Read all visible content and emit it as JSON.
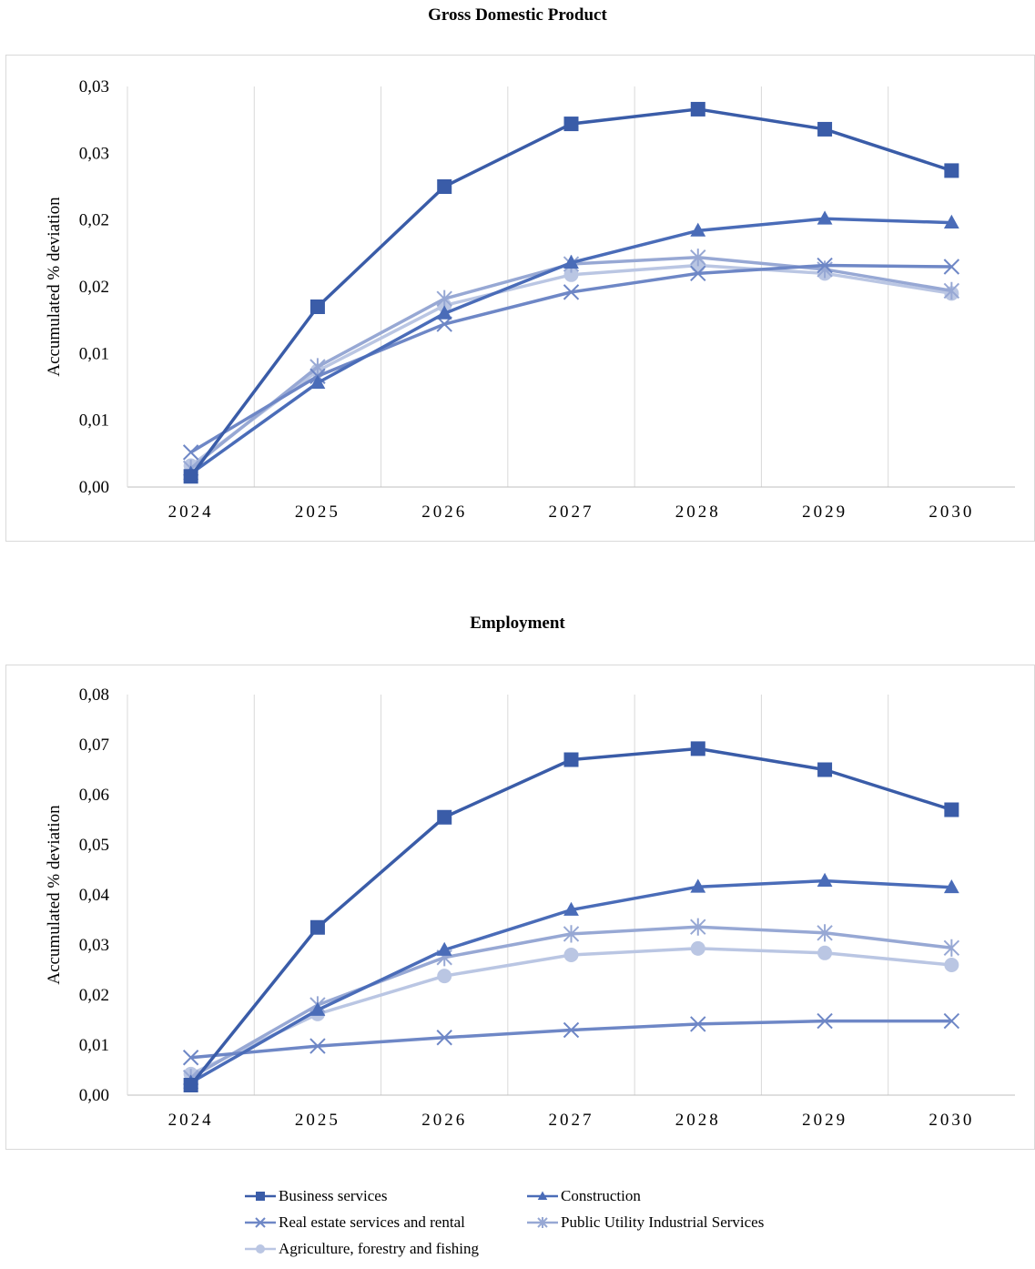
{
  "chart_data": [
    {
      "type": "line",
      "title": "Gross Domestic Product",
      "xlabel": "",
      "ylabel": "Accumulated % deviation",
      "categories": [
        "2024",
        "2025",
        "2026",
        "2027",
        "2028",
        "2029",
        "2030"
      ],
      "y_tick_labels": [
        "0,00",
        "0,01",
        "0,01",
        "0,02",
        "0,02",
        "0,03",
        "0,03"
      ],
      "ylim": [
        0,
        0.03
      ],
      "grid": "vertical",
      "series": [
        {
          "name": "Business services",
          "values": [
            0.0008,
            0.0135,
            0.0225,
            0.0272,
            0.0283,
            0.0268,
            0.0237
          ]
        },
        {
          "name": "Construction",
          "values": [
            0.001,
            0.0078,
            0.013,
            0.0168,
            0.0192,
            0.0201,
            0.0198
          ]
        },
        {
          "name": "Real estate services and rental",
          "values": [
            0.0026,
            0.0083,
            0.0122,
            0.0146,
            0.016,
            0.0166,
            0.0165
          ]
        },
        {
          "name": "Public Utility Industrial Services",
          "values": [
            0.0014,
            0.009,
            0.0141,
            0.0167,
            0.0172,
            0.0163,
            0.0147
          ]
        },
        {
          "name": "Agriculture, forestry and fishing",
          "values": [
            0.0016,
            0.0087,
            0.0136,
            0.0159,
            0.0166,
            0.016,
            0.0145
          ]
        }
      ]
    },
    {
      "type": "line",
      "title": "Employment",
      "xlabel": "",
      "ylabel": "Accumulated % deviation",
      "categories": [
        "2024",
        "2025",
        "2026",
        "2027",
        "2028",
        "2029",
        "2030"
      ],
      "y_tick_labels": [
        "0,00",
        "0,01",
        "0,02",
        "0,03",
        "0,04",
        "0,05",
        "0,06",
        "0,07",
        "0,08"
      ],
      "ylim": [
        0,
        0.08
      ],
      "grid": "vertical",
      "series": [
        {
          "name": "Business services",
          "values": [
            0.002,
            0.0335,
            0.0555,
            0.067,
            0.0692,
            0.065,
            0.057
          ]
        },
        {
          "name": "Construction",
          "values": [
            0.0025,
            0.017,
            0.029,
            0.037,
            0.0416,
            0.0428,
            0.0415
          ]
        },
        {
          "name": "Real estate services and rental",
          "values": [
            0.0075,
            0.0098,
            0.0115,
            0.013,
            0.0142,
            0.0148,
            0.0148
          ]
        },
        {
          "name": "Public Utility Industrial Services",
          "values": [
            0.0035,
            0.018,
            0.0275,
            0.0322,
            0.0336,
            0.0324,
            0.0294
          ]
        },
        {
          "name": "Agriculture, forestry and fishing",
          "values": [
            0.0042,
            0.0162,
            0.0238,
            0.028,
            0.0293,
            0.0284,
            0.026
          ]
        }
      ]
    }
  ],
  "legend": {
    "placement": "bottom",
    "items": [
      {
        "label": "Business services",
        "marker": "square",
        "color": "#3a5ca8"
      },
      {
        "label": "Construction",
        "marker": "triangle",
        "color": "#4a6cb8"
      },
      {
        "label": "Real estate services and rental",
        "marker": "x",
        "color": "#6e87c6"
      },
      {
        "label": "Public Utility Industrial Services",
        "marker": "star",
        "color": "#97a8d4"
      },
      {
        "label": "Agriculture, forestry and fishing",
        "marker": "circle",
        "color": "#bac6e3"
      }
    ]
  }
}
